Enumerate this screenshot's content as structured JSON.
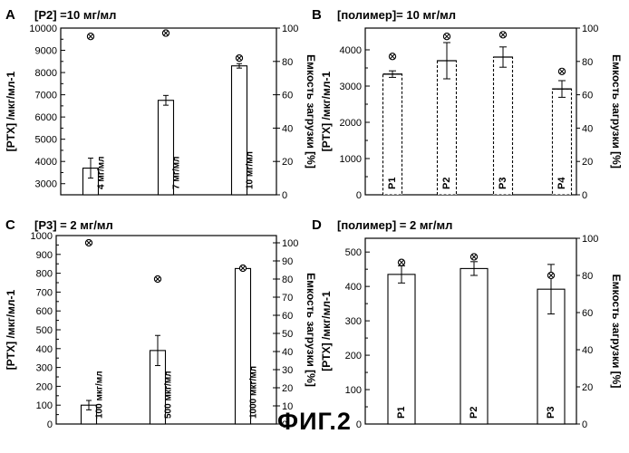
{
  "figure": {
    "caption": "ФИГ.2"
  },
  "chart_data": [
    {
      "type": "bar",
      "panel_letter": "A",
      "title": "[P2] =10 мг/мл",
      "ylabel": "[PTX] /мкг/мл-1",
      "y2label": "Емкость загрузки [%]",
      "ylim": [
        2500,
        10000
      ],
      "yticks": [
        3000,
        4000,
        5000,
        6000,
        7000,
        8000,
        9000,
        10000
      ],
      "y2lim": [
        0,
        100
      ],
      "y2ticks": [
        0,
        20,
        40,
        60,
        80,
        100
      ],
      "categories": [
        "4 мг/мл",
        "7 мг/мл",
        "10 мг/мл"
      ],
      "values": [
        3700,
        6750,
        8300
      ],
      "errors": [
        450,
        220,
        100
      ],
      "loading_capacity": [
        95,
        97,
        82
      ],
      "bar_labels": [
        "4 мг/мл",
        "7 мг/мл",
        "10 мг/мл"
      ],
      "grid": false
    },
    {
      "type": "bar",
      "panel_letter": "B",
      "title": "[полимер]= 10 мг/мл",
      "ylabel": "[PTX] /мкг/мл-1",
      "y2label": "Емкость загрузки [%]",
      "ylim": [
        0,
        4600
      ],
      "yticks": [
        0,
        1000,
        2000,
        3000,
        4000
      ],
      "y2lim": [
        0,
        100
      ],
      "y2ticks": [
        0,
        20,
        40,
        60,
        80,
        100
      ],
      "categories": [
        "P1",
        "P2",
        "P3",
        "P4"
      ],
      "values": [
        3330,
        3700,
        3800,
        2920
      ],
      "errors": [
        90,
        500,
        280,
        230
      ],
      "loading_capacity": [
        83,
        95,
        96,
        74
      ],
      "bar_labels": [
        "P1",
        "P2",
        "P3",
        "P4"
      ],
      "grid": false
    },
    {
      "type": "bar",
      "panel_letter": "C",
      "title": "[P3] = 2 мг/мл",
      "ylabel": "[PTX] /мкг/мл-1",
      "y2label": "Емкость загрузки [%]",
      "ylim": [
        0,
        1000
      ],
      "yticks": [
        0,
        100,
        200,
        300,
        400,
        500,
        600,
        700,
        800,
        900,
        1000
      ],
      "y2lim": [
        0,
        104
      ],
      "y2ticks": [
        0,
        10,
        20,
        30,
        40,
        50,
        60,
        70,
        80,
        90,
        100
      ],
      "categories": [
        "100 мкг/мл",
        "500 мкг/мл",
        "1000 мкг/мл"
      ],
      "values": [
        100,
        390,
        825
      ],
      "errors": [
        25,
        80,
        0
      ],
      "loading_capacity": [
        100,
        80,
        86
      ],
      "bar_labels": [
        "100 мкг/мл",
        "500 мкг/мл",
        "1000 мкг/мл"
      ],
      "grid": false
    },
    {
      "type": "bar",
      "panel_letter": "D",
      "title": "[полимер] = 2 мг/мл",
      "ylabel": "[PTX] /мкг/мл-1",
      "y2label": "Емкость загрузки [%]",
      "ylim": [
        0,
        540
      ],
      "yticks": [
        0,
        100,
        200,
        300,
        400,
        500
      ],
      "y2lim": [
        0,
        100
      ],
      "y2ticks": [
        0,
        20,
        40,
        60,
        80,
        100
      ],
      "categories": [
        "P1",
        "P2",
        "P3"
      ],
      "values": [
        435,
        452,
        392
      ],
      "errors": [
        25,
        20,
        72
      ],
      "loading_capacity": [
        87,
        90,
        80
      ],
      "bar_labels": [
        "P1",
        "P2",
        "P3"
      ],
      "grid": false
    }
  ]
}
